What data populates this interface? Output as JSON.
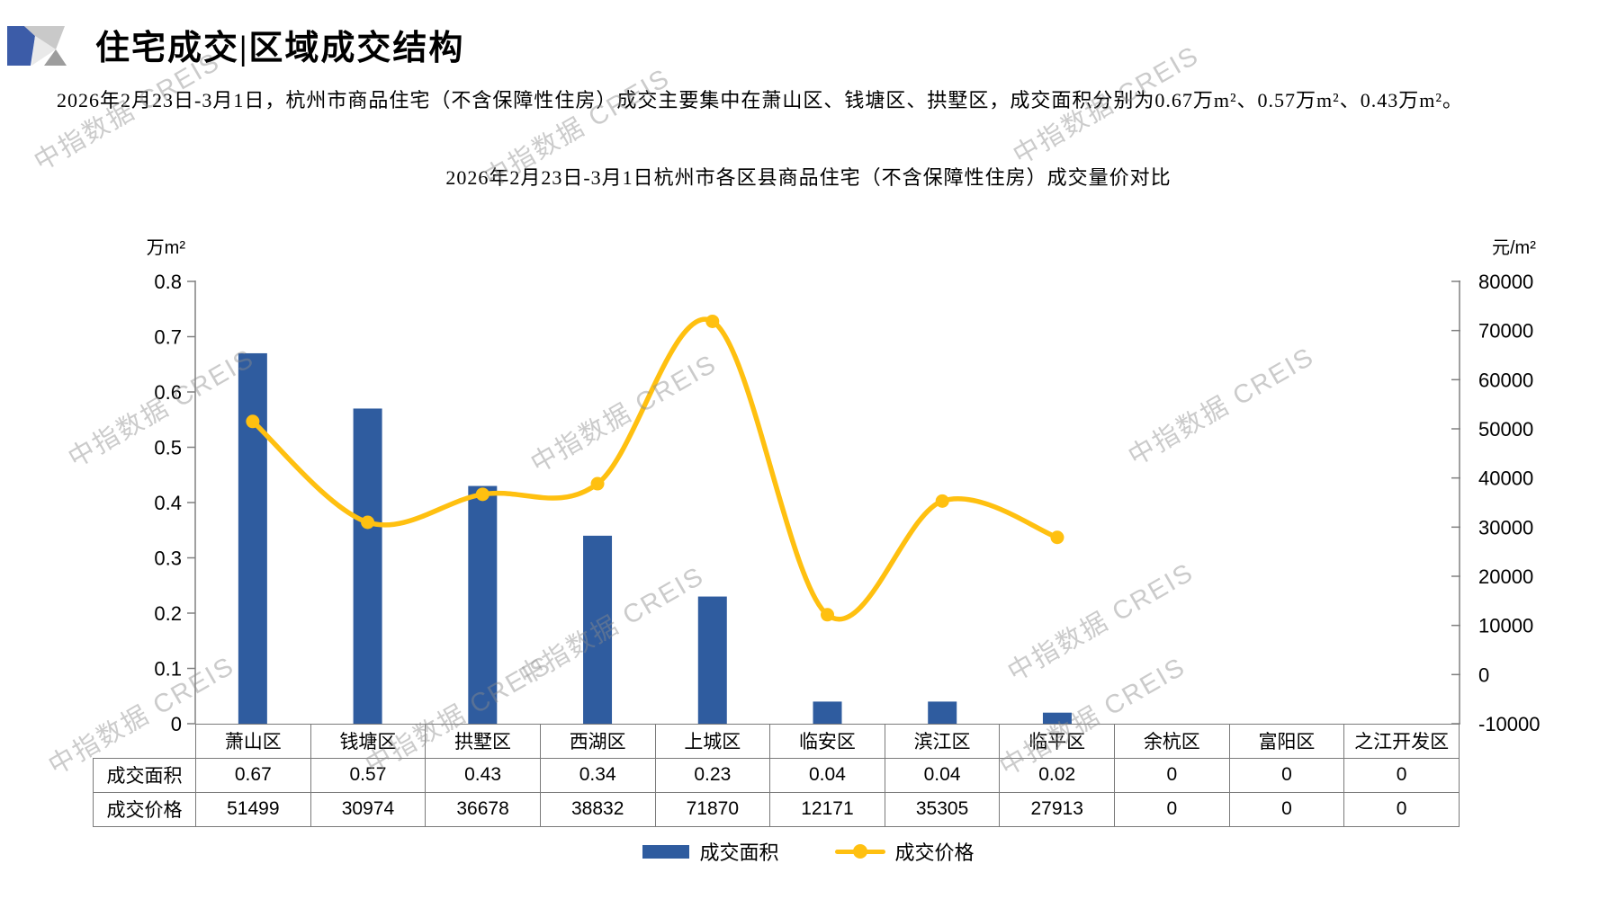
{
  "header": {
    "title": "住宅成交|区域成交结构"
  },
  "summary": "2026年2月23日-3月1日，杭州市商品住宅（不含保障性住房）成交主要集中在萧山区、钱塘区、拱墅区，成交面积分别为0.67万m²、0.57万m²、0.43万m²。",
  "watermark_text": "中指数据 CREIS",
  "chart_data": {
    "type": "bar",
    "combo": "bar+line, dual axis",
    "title": "2026年2月23日-3月1日杭州市各区县商品住宅（不含保障性住房）成交量价对比",
    "categories": [
      "萧山区",
      "钱塘区",
      "拱墅区",
      "西湖区",
      "上城区",
      "临安区",
      "滨江区",
      "临平区",
      "余杭区",
      "富阳区",
      "之江开发区"
    ],
    "series": [
      {
        "name": "成交面积",
        "chart": "bar",
        "axis": "left",
        "color": "#2F5C9F",
        "values": [
          0.67,
          0.57,
          0.43,
          0.34,
          0.23,
          0.04,
          0.04,
          0.02,
          0,
          0,
          0
        ]
      },
      {
        "name": "成交价格",
        "chart": "line",
        "axis": "right",
        "color": "#FFC010",
        "values": [
          51499,
          30974,
          36678,
          38832,
          71870,
          12171,
          35305,
          27913,
          0,
          0,
          0
        ]
      }
    ],
    "left_axis": {
      "title": "万m²",
      "min": 0,
      "max": 0.8,
      "step": 0.1,
      "tick_labels": [
        "0.8",
        "0.7",
        "0.6",
        "0.5",
        "0.4",
        "0.3",
        "0.2",
        "0.1",
        "0"
      ]
    },
    "right_axis": {
      "title": "元/m²",
      "min": -10000,
      "max": 80000,
      "step": 10000,
      "tick_labels": [
        "80000",
        "70000",
        "60000",
        "50000",
        "40000",
        "30000",
        "20000",
        "10000",
        "0",
        "-10000"
      ]
    },
    "legend": [
      "成交面积",
      "成交价格"
    ],
    "grid": "off",
    "legend_position": "bottom",
    "table": {
      "rows": [
        {
          "label": "成交面积",
          "cells": [
            "0.67",
            "0.57",
            "0.43",
            "0.34",
            "0.23",
            "0.04",
            "0.04",
            "0.02",
            "0",
            "0",
            "0"
          ]
        },
        {
          "label": "成交价格",
          "cells": [
            "51499",
            "30974",
            "36678",
            "38832",
            "71870",
            "12171",
            "35305",
            "27913",
            "0",
            "0",
            "0"
          ]
        }
      ]
    }
  }
}
